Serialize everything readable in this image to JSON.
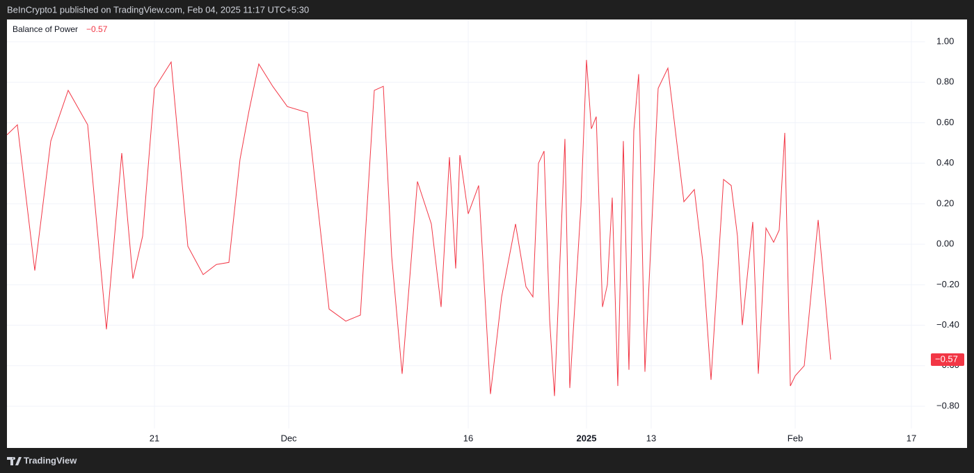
{
  "header": {
    "text": "BeInCrypto1 published on TradingView.com, Feb 04, 2025 11:17 UTC+5:30"
  },
  "footer": {
    "brand": "TradingView"
  },
  "chart_data": {
    "type": "line",
    "grid": true,
    "xlim": [
      0,
      132
    ],
    "ylim": [
      -0.91,
      1.11
    ],
    "yticks": [
      {
        "value": 1.0,
        "label": "1.00"
      },
      {
        "value": 0.8,
        "label": "0.80"
      },
      {
        "value": 0.6,
        "label": "0.60"
      },
      {
        "value": 0.4,
        "label": "0.40"
      },
      {
        "value": 0.2,
        "label": "0.20"
      },
      {
        "value": 0.0,
        "label": "0.00"
      },
      {
        "value": -0.2,
        "label": "−0.20"
      },
      {
        "value": -0.4,
        "label": "−0.40"
      },
      {
        "value": -0.6,
        "label": "−0.60"
      },
      {
        "value": -0.8,
        "label": "−0.80"
      }
    ],
    "xticks": [
      {
        "value": 21.2,
        "label": "21"
      },
      {
        "value": 40.5,
        "label": "Dec"
      },
      {
        "value": 66.3,
        "label": "16"
      },
      {
        "value": 83.3,
        "label": "2025"
      },
      {
        "value": 92.6,
        "label": "13"
      },
      {
        "value": 113.3,
        "label": "Feb"
      },
      {
        "value": 130,
        "label": "17"
      }
    ],
    "series": [
      {
        "name": "Balance of Power",
        "color": "#f23645",
        "last_value_label": "−0.57",
        "x": [
          0,
          1.5,
          4,
          6.3,
          8.8,
          11.6,
          14.3,
          16.5,
          18.1,
          19.5,
          21.2,
          23.6,
          26,
          28.2,
          30.1,
          31.9,
          33.5,
          34.8,
          36.2,
          38.2,
          40.3,
          43.2,
          46.3,
          48.7,
          50.8,
          52.8,
          54.1,
          55.3,
          56.8,
          59,
          61,
          62.4,
          63.6,
          64.5,
          65.1,
          66.3,
          67.8,
          69.5,
          71.1,
          73.1,
          74.6,
          75.6,
          76.4,
          77.2,
          78,
          78.7,
          80.2,
          80.9,
          82.5,
          83.3,
          84,
          84.7,
          85.6,
          86.3,
          87,
          87.8,
          88.6,
          89.4,
          90.1,
          90.8,
          91.7,
          93.6,
          95,
          97.3,
          98.8,
          100,
          101.2,
          103,
          104.1,
          105,
          105.7,
          107.2,
          108,
          109.1,
          110.2,
          111,
          111.8,
          112.6,
          113.3,
          114.6,
          116.6,
          118.4
        ],
        "values": [
          0.54,
          0.59,
          -0.13,
          0.51,
          0.76,
          0.59,
          -0.42,
          0.45,
          -0.17,
          0.04,
          0.77,
          0.9,
          -0.01,
          -0.15,
          -0.1,
          -0.09,
          0.42,
          0.66,
          0.89,
          0.78,
          0.68,
          0.65,
          -0.32,
          -0.38,
          -0.35,
          0.76,
          0.78,
          -0.06,
          -0.64,
          0.31,
          0.1,
          -0.31,
          0.43,
          -0.12,
          0.44,
          0.15,
          0.29,
          -0.74,
          -0.26,
          0.1,
          -0.21,
          -0.26,
          0.4,
          0.46,
          -0.37,
          -0.75,
          0.52,
          -0.71,
          0.19,
          0.91,
          0.57,
          0.63,
          -0.31,
          -0.2,
          0.23,
          -0.7,
          0.51,
          -0.62,
          0.56,
          0.84,
          -0.63,
          0.77,
          0.87,
          0.21,
          0.27,
          -0.08,
          -0.67,
          0.32,
          0.29,
          0.04,
          -0.4,
          0.11,
          -0.64,
          0.08,
          0.01,
          0.07,
          0.55,
          -0.7,
          -0.65,
          -0.6,
          0.12,
          -0.57
        ]
      }
    ]
  }
}
